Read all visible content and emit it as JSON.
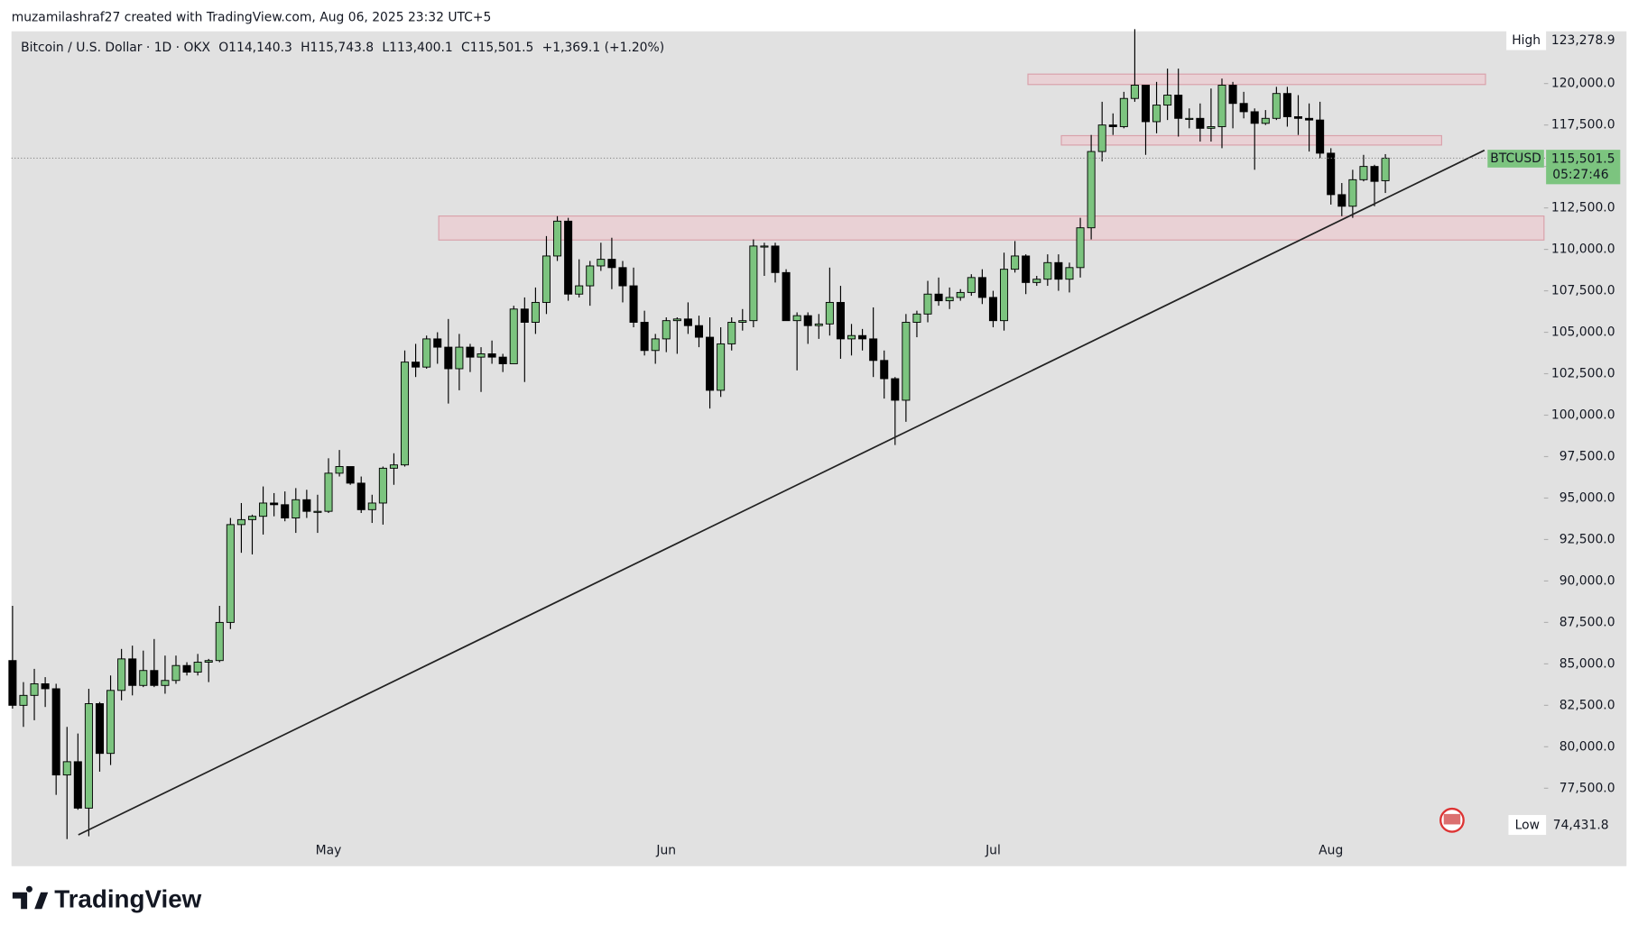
{
  "attribution": "muzamilashraf27 created with TradingView.com, Aug 06, 2025 23:32 UTC+5",
  "brand": "TradingView",
  "header": {
    "symbol": "Bitcoin / U.S. Dollar · 1D · OKX",
    "values": [
      "O114,140.3",
      "H115,743.8",
      "L113,400.1",
      "C115,501.5",
      "+1,369.1 (+1.20%)"
    ]
  },
  "chart_data": {
    "type": "candlestick",
    "up_color": "#7cc47f",
    "down_color": "#000000",
    "categories": [
      null,
      null,
      null,
      null,
      null,
      null,
      null,
      null,
      null,
      null,
      null,
      null,
      null,
      null,
      null,
      null,
      null,
      null,
      null,
      null,
      null,
      null,
      null,
      null,
      null,
      null,
      null,
      null,
      null,
      "May",
      null,
      null,
      null,
      null,
      null,
      null,
      null,
      null,
      null,
      null,
      null,
      null,
      null,
      null,
      null,
      null,
      null,
      null,
      null,
      null,
      null,
      null,
      null,
      null,
      null,
      null,
      null,
      null,
      null,
      null,
      "Jun",
      null,
      null,
      null,
      null,
      null,
      null,
      null,
      null,
      null,
      null,
      null,
      null,
      null,
      null,
      null,
      null,
      null,
      null,
      null,
      null,
      null,
      null,
      null,
      null,
      null,
      null,
      null,
      null,
      null,
      "Jul",
      null,
      null,
      null,
      null,
      null,
      null,
      null,
      null,
      null,
      null,
      null,
      null,
      null,
      null,
      null,
      null,
      null,
      null,
      null,
      null,
      null,
      null,
      null,
      null,
      null,
      null,
      null,
      null,
      null,
      null,
      "Aug",
      null,
      null,
      null,
      null,
      null
    ],
    "open": [
      85200,
      82500,
      83100,
      83800,
      83500,
      78300,
      79100,
      76300,
      82600,
      79600,
      83400,
      85300,
      83700,
      84600,
      83700,
      84000,
      84900,
      84500,
      85100,
      85200,
      87500,
      93400,
      93700,
      93900,
      94700,
      94600,
      93800,
      94900,
      94200,
      94200,
      96500,
      96900,
      95900,
      94300,
      94700,
      96800,
      97000,
      103200,
      102900,
      104600,
      104100,
      102800,
      104100,
      103500,
      103700,
      103500,
      103100,
      106400,
      105600,
      106800,
      109600,
      111700,
      107300,
      107800,
      109000,
      109400,
      108900,
      107800,
      105600,
      103900,
      104600,
      105700,
      105800,
      105400,
      104700,
      101500,
      104300,
      105600,
      105700,
      110200,
      110200,
      108600,
      105700,
      106000,
      105400,
      105500,
      106800,
      104600,
      104800,
      104600,
      103300,
      102200,
      100900,
      105600,
      106100,
      107300,
      106900,
      107100,
      107400,
      108300,
      107100,
      105700,
      108800,
      109600,
      108000,
      108200,
      109200,
      108200,
      108900,
      111300,
      115900,
      117500,
      117400,
      119100,
      119900,
      117700,
      118700,
      119300,
      117900,
      117900,
      117300,
      117400,
      119900,
      118800,
      118300,
      117600,
      117900,
      119400,
      118000,
      117900,
      117800,
      115800,
      113300,
      112600,
      114200,
      115000,
      114140.3
    ],
    "high": [
      88500,
      83900,
      84700,
      84200,
      83800,
      81200,
      80800,
      83500,
      82700,
      84300,
      85900,
      86100,
      85800,
      86500,
      85500,
      85500,
      85100,
      85600,
      85300,
      88500,
      93800,
      94700,
      94000,
      95700,
      95300,
      95400,
      95600,
      95500,
      95200,
      97400,
      97900,
      96900,
      96300,
      95200,
      96900,
      97700,
      103900,
      104300,
      104800,
      105000,
      105800,
      104900,
      104300,
      104100,
      104500,
      103700,
      106600,
      107100,
      107700,
      110800,
      112000,
      111900,
      109400,
      109300,
      110400,
      110700,
      109300,
      108900,
      106300,
      104900,
      105900,
      105900,
      106800,
      106000,
      105900,
      105300,
      105900,
      106400,
      110600,
      110400,
      110400,
      108800,
      106200,
      106200,
      106100,
      108900,
      107800,
      105500,
      105200,
      106500,
      103900,
      102300,
      106100,
      106300,
      108100,
      108300,
      107700,
      107600,
      108500,
      108800,
      107500,
      109800,
      110500,
      109700,
      108400,
      109700,
      109700,
      109200,
      111900,
      116900,
      118900,
      118200,
      119500,
      123278.9,
      119900,
      120100,
      120900,
      120900,
      118500,
      118800,
      119700,
      120300,
      120100,
      119500,
      118500,
      118400,
      119800,
      119800,
      119300,
      118800,
      118900,
      116100,
      114000,
      114800,
      115700,
      115100,
      115743.8
    ],
    "low": [
      82300,
      81200,
      81600,
      82400,
      77100,
      74431.8,
      76200,
      74600,
      78500,
      78900,
      82800,
      83100,
      83600,
      83600,
      83200,
      83800,
      84300,
      84300,
      83900,
      85100,
      87100,
      91700,
      91600,
      92800,
      93900,
      93600,
      92900,
      93800,
      92900,
      94100,
      96300,
      95800,
      94100,
      93500,
      93400,
      95800,
      96900,
      102300,
      102800,
      103100,
      100700,
      101500,
      102600,
      101400,
      103100,
      102600,
      103100,
      102000,
      104900,
      106100,
      109300,
      106900,
      107100,
      106600,
      108700,
      107600,
      106800,
      105300,
      103600,
      103100,
      103800,
      103700,
      104900,
      104100,
      100400,
      101100,
      103900,
      105100,
      105300,
      108400,
      108000,
      105700,
      102700,
      104300,
      104600,
      104800,
      103400,
      103600,
      103900,
      102300,
      101000,
      98200,
      99600,
      104700,
      105600,
      106600,
      106400,
      106900,
      107200,
      106700,
      105300,
      105100,
      108600,
      107300,
      107800,
      107800,
      107500,
      107400,
      108300,
      110600,
      115300,
      116900,
      117300,
      118900,
      115700,
      117000,
      117800,
      116800,
      117300,
      116500,
      116500,
      116100,
      117300,
      117900,
      114800,
      117500,
      117800,
      117400,
      116900,
      115900,
      115500,
      112700,
      112000,
      111900,
      114100,
      112600,
      113400.1
    ],
    "close": [
      82500,
      83100,
      83800,
      83500,
      78300,
      79100,
      76300,
      82600,
      79600,
      83400,
      85300,
      83700,
      84600,
      83700,
      84000,
      84900,
      84500,
      85100,
      85200,
      87500,
      93400,
      93700,
      93900,
      94700,
      94600,
      93800,
      94900,
      94200,
      94200,
      96500,
      96900,
      95900,
      94300,
      94700,
      96800,
      97000,
      103200,
      102900,
      104600,
      104100,
      102800,
      104100,
      103500,
      103700,
      103500,
      103100,
      106400,
      105600,
      106800,
      109600,
      111700,
      107300,
      107800,
      109000,
      109400,
      108900,
      107800,
      105600,
      103900,
      104600,
      105700,
      105800,
      105400,
      104700,
      101500,
      104300,
      105600,
      105700,
      110200,
      110200,
      108600,
      105700,
      106000,
      105400,
      105500,
      106800,
      104600,
      104800,
      104600,
      103300,
      102200,
      100900,
      105600,
      106100,
      107300,
      106900,
      107100,
      107400,
      108300,
      107100,
      105700,
      108800,
      109600,
      108000,
      108200,
      109200,
      108200,
      108900,
      111300,
      115900,
      117500,
      117400,
      119100,
      119900,
      117700,
      118700,
      119300,
      117900,
      117900,
      117300,
      117400,
      119900,
      118800,
      118300,
      117600,
      117900,
      119400,
      118000,
      117900,
      117800,
      115800,
      113300,
      112600,
      114200,
      115000,
      114100,
      115501.5
    ],
    "ylim": [
      72800,
      123150
    ],
    "yticks": [
      {
        "value": 77500,
        "label": "77,500.0"
      },
      {
        "value": 80000,
        "label": "80,000.0"
      },
      {
        "value": 82500,
        "label": "82,500.0"
      },
      {
        "value": 85000,
        "label": "85,000.0"
      },
      {
        "value": 87500,
        "label": "87,500.0"
      },
      {
        "value": 90000,
        "label": "90,000.0"
      },
      {
        "value": 92500,
        "label": "92,500.0"
      },
      {
        "value": 95000,
        "label": "95,000.0"
      },
      {
        "value": 97500,
        "label": "97,500.0"
      },
      {
        "value": 100000,
        "label": "100,000.0"
      },
      {
        "value": 102500,
        "label": "102,500.0"
      },
      {
        "value": 105000,
        "label": "105,000.0"
      },
      {
        "value": 107500,
        "label": "107,500.0"
      },
      {
        "value": 110000,
        "label": "110,000.0"
      },
      {
        "value": 112500,
        "label": "112,500.0"
      },
      {
        "value": 115000,
        "label": "115,000.0"
      },
      {
        "value": 117500,
        "label": "117,500.0"
      },
      {
        "value": 120000,
        "label": "120,000.0"
      }
    ],
    "high_label": {
      "name": "High",
      "value": 123278.9,
      "label": "123,278.9"
    },
    "low_label": {
      "name": "Low",
      "value": 74431.8,
      "label": "74,431.8"
    },
    "last_price": {
      "symbol": "BTCUSD",
      "value": 115501.5,
      "label": "115,501.5",
      "countdown": "05:27:46"
    }
  }
}
